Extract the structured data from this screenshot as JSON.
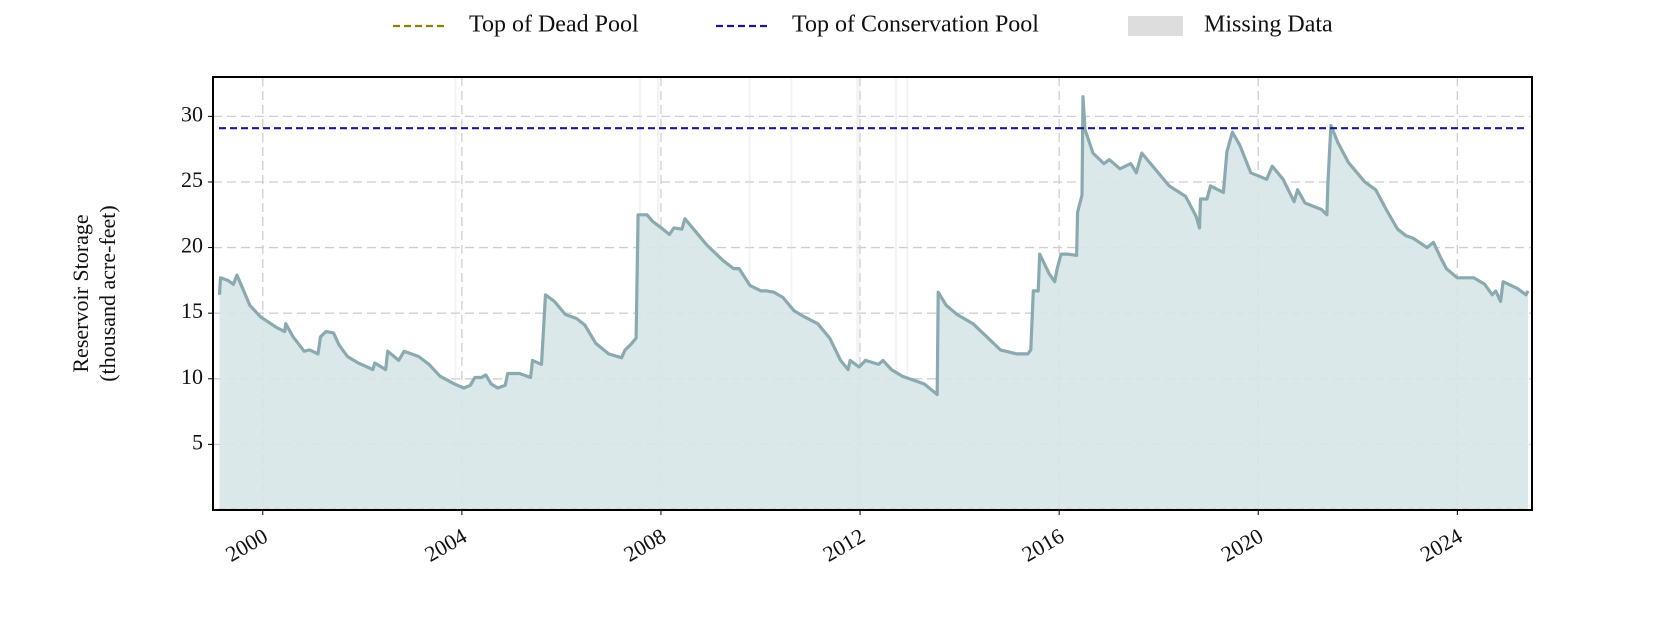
{
  "chart_data": {
    "type": "line",
    "ylabel": [
      "Reservoir Storage",
      "(thousand acre-feet)"
    ],
    "xlim": [
      1999.0,
      2025.5
    ],
    "xticks": [
      2000,
      2004,
      2008,
      2012,
      2016,
      2020,
      2024
    ],
    "ylim": [
      0,
      33
    ],
    "yticks": [
      5,
      10,
      15,
      20,
      25,
      30
    ],
    "grid": true,
    "legend": "top",
    "series": [
      {
        "name": "Reservoir Storage",
        "color": "#8aaab0",
        "fill": "#d6e6e8",
        "x": [
          1999.13,
          1999.15,
          1999.3,
          1999.41,
          1999.48,
          1999.56,
          1999.74,
          1999.96,
          2000.28,
          2000.44,
          2000.46,
          2000.61,
          2000.83,
          2000.94,
          2001.11,
          2001.16,
          2001.27,
          2001.42,
          2001.53,
          2001.7,
          2001.92,
          2002.21,
          2002.25,
          2002.47,
          2002.51,
          2002.73,
          2002.84,
          2003.13,
          2003.34,
          2003.56,
          2003.85,
          2004.04,
          2004.17,
          2004.26,
          2004.39,
          2004.48,
          2004.59,
          2004.72,
          2004.87,
          2004.92,
          2005.16,
          2005.38,
          2005.42,
          2005.6,
          2005.68,
          2005.86,
          2006.08,
          2006.3,
          2006.47,
          2006.69,
          2006.95,
          2007.21,
          2007.28,
          2007.39,
          2007.5,
          2007.54,
          2007.72,
          2007.83,
          2008.04,
          2008.17,
          2008.26,
          2008.42,
          2008.48,
          2008.7,
          2008.92,
          2009.25,
          2009.46,
          2009.57,
          2009.79,
          2010.01,
          2010.12,
          2010.27,
          2010.45,
          2010.67,
          2010.89,
          2011.15,
          2011.39,
          2011.61,
          2011.76,
          2011.8,
          2011.98,
          2012.11,
          2012.37,
          2012.46,
          2012.63,
          2012.85,
          2013.07,
          2013.29,
          2013.55,
          2013.57,
          2013.73,
          2013.95,
          2014.27,
          2014.49,
          2014.82,
          2015.15,
          2015.37,
          2015.43,
          2015.48,
          2015.58,
          2015.61,
          2015.8,
          2015.91,
          2015.96,
          2016.04,
          2016.17,
          2016.35,
          2016.37,
          2016.46,
          2016.48,
          2016.52,
          2016.68,
          2016.9,
          2017.01,
          2017.22,
          2017.44,
          2017.55,
          2017.66,
          2017.88,
          2018.21,
          2018.54,
          2018.75,
          2018.82,
          2018.84,
          2018.97,
          2019.04,
          2019.3,
          2019.37,
          2019.48,
          2019.63,
          2019.85,
          2020.17,
          2020.28,
          2020.5,
          2020.72,
          2020.79,
          2020.94,
          2021.27,
          2021.38,
          2021.4,
          2021.46,
          2021.6,
          2021.81,
          2022.14,
          2022.36,
          2022.57,
          2022.8,
          2022.97,
          2023.12,
          2023.39,
          2023.52,
          2023.67,
          2023.78,
          2024.0,
          2024.33,
          2024.55,
          2024.7,
          2024.77,
          2024.87,
          2024.92,
          2025.2,
          2025.38,
          2025.42
        ],
        "values": [
          16.4,
          17.7,
          17.5,
          17.2,
          17.9,
          17.2,
          15.6,
          14.7,
          13.9,
          13.6,
          14.2,
          13.2,
          12.1,
          12.2,
          11.9,
          13.2,
          13.6,
          13.5,
          12.6,
          11.7,
          11.2,
          10.7,
          11.2,
          10.7,
          12.1,
          11.4,
          12.1,
          11.7,
          11.1,
          10.2,
          9.6,
          9.3,
          9.5,
          10.1,
          10.1,
          10.3,
          9.6,
          9.3,
          9.5,
          10.4,
          10.4,
          10.1,
          11.4,
          11.1,
          16.4,
          15.9,
          14.9,
          14.6,
          14.1,
          12.7,
          11.9,
          11.6,
          12.2,
          12.6,
          13.1,
          22.5,
          22.5,
          22.0,
          21.4,
          21.0,
          21.5,
          21.4,
          22.2,
          21.2,
          20.2,
          19.0,
          18.4,
          18.4,
          17.1,
          16.7,
          16.7,
          16.6,
          16.2,
          15.2,
          14.7,
          14.2,
          13.1,
          11.4,
          10.7,
          11.4,
          10.9,
          11.4,
          11.1,
          11.4,
          10.7,
          10.2,
          9.9,
          9.6,
          8.8,
          16.6,
          15.6,
          14.9,
          14.2,
          13.4,
          12.2,
          11.9,
          11.9,
          12.2,
          16.7,
          16.7,
          19.5,
          18.0,
          17.4,
          18.4,
          19.5,
          19.5,
          19.4,
          22.7,
          24.0,
          31.5,
          29.0,
          27.2,
          26.4,
          26.7,
          26.0,
          26.4,
          25.7,
          27.2,
          26.2,
          24.7,
          23.9,
          22.4,
          21.5,
          23.7,
          23.7,
          24.7,
          24.2,
          27.3,
          28.8,
          27.8,
          25.7,
          25.2,
          26.2,
          25.2,
          23.5,
          24.4,
          23.4,
          22.9,
          22.5,
          24.9,
          29.3,
          28.0,
          26.5,
          25.0,
          24.4,
          22.9,
          21.4,
          20.9,
          20.7,
          20.0,
          20.4,
          19.2,
          18.4,
          17.7,
          17.7,
          17.2,
          16.4,
          16.7,
          15.9,
          17.4,
          16.9,
          16.4,
          16.7
        ]
      }
    ],
    "reference_lines": [
      {
        "name": "Top of Dead Pool",
        "color": "#8b8000",
        "value": 0
      },
      {
        "name": "Top of Conservation Pool",
        "color": "#1a1a8c",
        "value": 29.1
      }
    ],
    "missing_data": {
      "name": "Missing Data",
      "color": "#dddddd",
      "ranges": [
        [
          2003.85,
          2003.89
        ],
        [
          2007.56,
          2007.6
        ],
        [
          2007.92,
          2007.97
        ],
        [
          2009.76,
          2009.8
        ],
        [
          2010.6,
          2010.64
        ],
        [
          2011.92,
          2012.0
        ],
        [
          2012.7,
          2012.74
        ],
        [
          2012.93,
          2012.97
        ]
      ]
    }
  }
}
